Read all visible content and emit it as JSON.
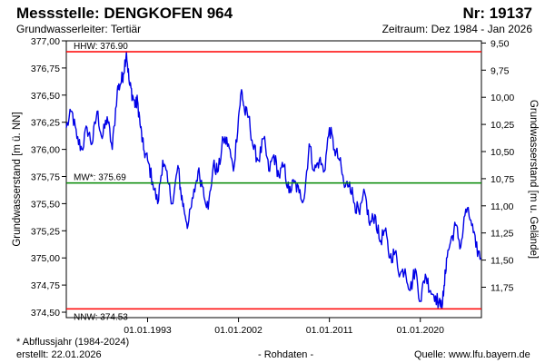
{
  "header": {
    "title": "Messstelle: DENGKOFEN 964",
    "number": "Nr: 19137",
    "aquifer": "Grundwasserleiter: Tertiär",
    "period": "Zeitraum: Dez 1984 - Jan 2026"
  },
  "footer": {
    "note": "* Abflussjahr (1984-2024)",
    "created": "erstellt:  22.01.2026",
    "rawdata": "- Rohdaten -",
    "source": "Quelle:  www.lfu.bayern.de"
  },
  "colors": {
    "series": "#0000e6",
    "extreme_lines": "#ff0000",
    "mean_line": "#008800"
  },
  "chart_data": {
    "type": "line",
    "title": "Messstelle: DENGKOFEN 964",
    "ylabel": "Grundwasserstand [m ü. NN]",
    "y2label": "Grundwasserstand [m u. Gelände]",
    "xlim": [
      1984.95,
      2026.05
    ],
    "ylim": [
      374.45,
      377.0
    ],
    "y2lim": [
      12.03,
      9.48
    ],
    "grid": false,
    "x_ticks": [
      {
        "x": 1993.0,
        "label": "01.01.1993"
      },
      {
        "x": 2002.0,
        "label": "01.01.2002"
      },
      {
        "x": 2011.0,
        "label": "01.01.2011"
      },
      {
        "x": 2020.0,
        "label": "01.01.2020"
      }
    ],
    "y_ticks": [
      "374,50",
      "374,75",
      "375,00",
      "375,25",
      "375,50",
      "375,75",
      "376,00",
      "376,25",
      "376,50",
      "376,75",
      "377,00"
    ],
    "y2_ticks": [
      "9,50",
      "9,75",
      "10,00",
      "10,25",
      "10,50",
      "10,75",
      "11,00",
      "11,25",
      "11,50",
      "11,75"
    ],
    "reference_lines": [
      {
        "label": "HHW: 376.90",
        "value": 376.9
      },
      {
        "label": "MW*: 375.69",
        "value": 375.69
      },
      {
        "label": "NNW: 374.53",
        "value": 374.53
      }
    ],
    "series": [
      {
        "x": [
          1984.95,
          1985.5,
          1986.0,
          1986.5,
          1987.0,
          1987.5,
          1988.0,
          1988.5,
          1989.0,
          1989.5,
          1990.0,
          1990.3,
          1990.6,
          1990.9,
          1991.2,
          1991.5,
          1991.8,
          1992.0,
          1992.3,
          1992.6,
          1993.0,
          1993.5,
          1994.0,
          1994.5,
          1995.0,
          1995.5,
          1996.0,
          1996.3,
          1996.6,
          1997.0,
          1997.5,
          1998.0,
          1998.5,
          1999.0,
          1999.5,
          2000.0,
          2000.5,
          2001.0,
          2001.5,
          2002.0,
          2002.3,
          2002.6,
          2003.0,
          2003.5,
          2004.0,
          2004.5,
          2005.0,
          2005.5,
          2006.0,
          2006.5,
          2007.0,
          2007.5,
          2008.0,
          2008.5,
          2009.0,
          2009.5,
          2010.0,
          2010.5,
          2011.0,
          2011.5,
          2012.0,
          2012.5,
          2013.0,
          2013.5,
          2014.0,
          2014.5,
          2015.0,
          2015.5,
          2016.0,
          2016.5,
          2017.0,
          2017.5,
          2018.0,
          2018.5,
          2019.0,
          2019.5,
          2020.0,
          2020.5,
          2021.0,
          2021.5,
          2022.0,
          2022.3,
          2022.6,
          2023.0,
          2023.5,
          2024.0,
          2024.5,
          2025.0,
          2025.5,
          2026.0
        ],
        "y": [
          376.2,
          376.35,
          376.1,
          376.0,
          376.2,
          376.05,
          376.35,
          376.1,
          376.3,
          376.0,
          376.55,
          376.6,
          376.7,
          376.9,
          376.6,
          376.5,
          376.4,
          376.45,
          376.2,
          376.0,
          375.9,
          375.7,
          375.5,
          375.9,
          375.7,
          375.5,
          375.85,
          375.6,
          375.45,
          375.3,
          375.55,
          375.8,
          375.65,
          375.45,
          375.85,
          375.8,
          376.1,
          376.05,
          375.8,
          376.3,
          376.55,
          376.35,
          376.3,
          376.0,
          375.9,
          376.1,
          375.8,
          375.95,
          375.75,
          375.85,
          375.6,
          375.7,
          375.6,
          375.55,
          376.05,
          375.8,
          375.9,
          375.8,
          376.2,
          376.0,
          375.9,
          375.65,
          375.7,
          375.5,
          375.4,
          375.6,
          375.3,
          375.4,
          375.15,
          375.25,
          375.0,
          375.05,
          374.85,
          374.9,
          374.7,
          374.9,
          374.6,
          374.85,
          374.7,
          374.65,
          374.55,
          374.65,
          375.0,
          375.15,
          375.3,
          375.1,
          375.45,
          375.35,
          375.1,
          375.0
        ]
      }
    ]
  }
}
